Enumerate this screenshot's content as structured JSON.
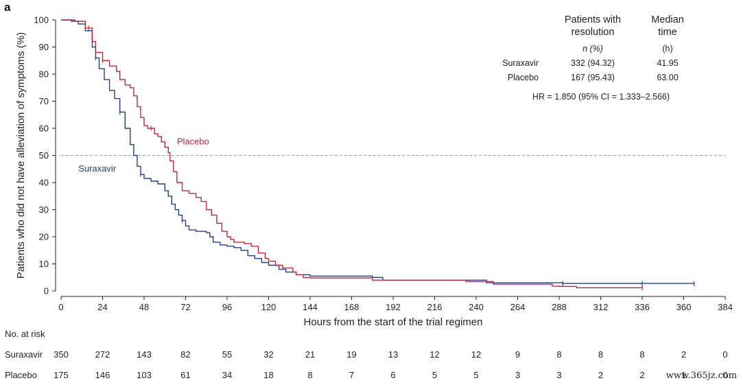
{
  "panel_label": "a",
  "watermark": "www.365jz.com",
  "colors": {
    "suraxavir": "#1f3f8f",
    "placebo": "#c0283c",
    "reference": "#9a9a9a"
  },
  "chart_data": {
    "type": "line",
    "subtype": "kaplan-meier",
    "xlabel": "Hours from the start of the trial regimen",
    "ylabel": "Patients who did not have alleviation of symptoms (%)",
    "xlim": [
      0,
      384
    ],
    "ylim": [
      0,
      100
    ],
    "x_ticks": [
      0,
      24,
      48,
      72,
      96,
      120,
      144,
      168,
      192,
      216,
      240,
      264,
      288,
      312,
      336,
      360,
      384
    ],
    "y_ticks": [
      0,
      10,
      20,
      30,
      40,
      50,
      60,
      70,
      80,
      90,
      100
    ],
    "reference_line_y": 50,
    "grid": false,
    "series": [
      {
        "name": "Suraxavir",
        "color": "#1f3f8f",
        "points": [
          [
            0,
            100
          ],
          [
            6,
            99.5
          ],
          [
            10,
            98.5
          ],
          [
            14,
            96
          ],
          [
            18,
            90
          ],
          [
            20,
            86
          ],
          [
            22,
            82
          ],
          [
            25,
            78
          ],
          [
            28,
            74
          ],
          [
            31,
            71
          ],
          [
            34,
            66
          ],
          [
            37,
            60
          ],
          [
            40,
            54
          ],
          [
            42,
            50
          ],
          [
            44,
            46
          ],
          [
            46,
            43
          ],
          [
            48,
            41.5
          ],
          [
            52,
            40.5
          ],
          [
            56,
            39.5
          ],
          [
            60,
            37
          ],
          [
            62,
            35
          ],
          [
            64,
            32
          ],
          [
            66,
            30
          ],
          [
            68,
            28
          ],
          [
            70,
            26
          ],
          [
            72,
            24
          ],
          [
            74,
            22.5
          ],
          [
            78,
            22
          ],
          [
            84,
            21.5
          ],
          [
            86,
            20
          ],
          [
            88,
            18
          ],
          [
            92,
            17
          ],
          [
            96,
            16.5
          ],
          [
            100,
            16
          ],
          [
            104,
            15
          ],
          [
            108,
            13
          ],
          [
            112,
            12
          ],
          [
            116,
            10.5
          ],
          [
            120,
            9.5
          ],
          [
            126,
            8
          ],
          [
            130,
            7
          ],
          [
            136,
            6
          ],
          [
            144,
            5.5
          ],
          [
            180,
            5
          ],
          [
            186,
            4
          ],
          [
            240,
            4
          ],
          [
            246,
            3
          ],
          [
            290,
            2.8
          ],
          [
            336,
            2.8
          ],
          [
            366,
            2.7
          ]
        ],
        "censor_x": [
          20,
          34,
          46,
          70,
          290,
          336,
          366
        ]
      },
      {
        "name": "Placebo",
        "color": "#c0283c",
        "points": [
          [
            0,
            100
          ],
          [
            8,
            99.5
          ],
          [
            14,
            97
          ],
          [
            18,
            92
          ],
          [
            20,
            88
          ],
          [
            24,
            85
          ],
          [
            28,
            83
          ],
          [
            32,
            81
          ],
          [
            34,
            78
          ],
          [
            37,
            76
          ],
          [
            40,
            75
          ],
          [
            42,
            72
          ],
          [
            44,
            68
          ],
          [
            46,
            64
          ],
          [
            48,
            61
          ],
          [
            50,
            60
          ],
          [
            54,
            58
          ],
          [
            56,
            57
          ],
          [
            58,
            55
          ],
          [
            60,
            53
          ],
          [
            62,
            51
          ],
          [
            63,
            48
          ],
          [
            65,
            44
          ],
          [
            67,
            40
          ],
          [
            70,
            37
          ],
          [
            74,
            36
          ],
          [
            78,
            34.5
          ],
          [
            81,
            33
          ],
          [
            84,
            30
          ],
          [
            87,
            28
          ],
          [
            90,
            25
          ],
          [
            93,
            22
          ],
          [
            96,
            20
          ],
          [
            98,
            19
          ],
          [
            100,
            18
          ],
          [
            106,
            17.5
          ],
          [
            110,
            16.5
          ],
          [
            114,
            14
          ],
          [
            118,
            12
          ],
          [
            120,
            11
          ],
          [
            124,
            9.5
          ],
          [
            128,
            8.5
          ],
          [
            134,
            7
          ],
          [
            136,
            6
          ],
          [
            140,
            5
          ],
          [
            144,
            4.8
          ],
          [
            176,
            4.8
          ],
          [
            180,
            4
          ],
          [
            234,
            3.5
          ],
          [
            250,
            2.5
          ],
          [
            284,
            1.8
          ],
          [
            288,
            1.7
          ],
          [
            298,
            1.2
          ],
          [
            336,
            1.1
          ]
        ],
        "censor_x": [
          16,
          24,
          52,
          336
        ]
      }
    ],
    "curve_labels": [
      {
        "series": "Placebo",
        "text": "Placebo",
        "x": 67,
        "y": 54
      },
      {
        "series": "Suraxavir",
        "text": "Suraxavir",
        "x": 10,
        "y": 44
      }
    ],
    "legend_table": {
      "headers": [
        "Patients with resolution",
        "Median time"
      ],
      "header_lines": [
        [
          "Patients with",
          "resolution"
        ],
        [
          "Median",
          "time"
        ]
      ],
      "subheaders": [
        "n (%)",
        "(h)"
      ],
      "rows": [
        {
          "label": "Suraxavir",
          "n_pct": "332 (94.32)",
          "median": "41.95"
        },
        {
          "label": "Placebo",
          "n_pct": "167 (95.43)",
          "median": "63.00"
        }
      ],
      "note": "HR = 1.850 (95% CI = 1.333–2.566)"
    },
    "at_risk": {
      "title": "No. at risk",
      "rows": [
        {
          "label": "Suraxavir",
          "values": [
            350,
            272,
            143,
            82,
            55,
            32,
            21,
            19,
            13,
            12,
            12,
            9,
            8,
            8,
            8,
            2,
            0
          ]
        },
        {
          "label": "Placebo",
          "values": [
            175,
            146,
            103,
            61,
            34,
            18,
            8,
            7,
            6,
            5,
            5,
            3,
            3,
            2,
            2,
            1,
            0
          ]
        }
      ]
    }
  }
}
